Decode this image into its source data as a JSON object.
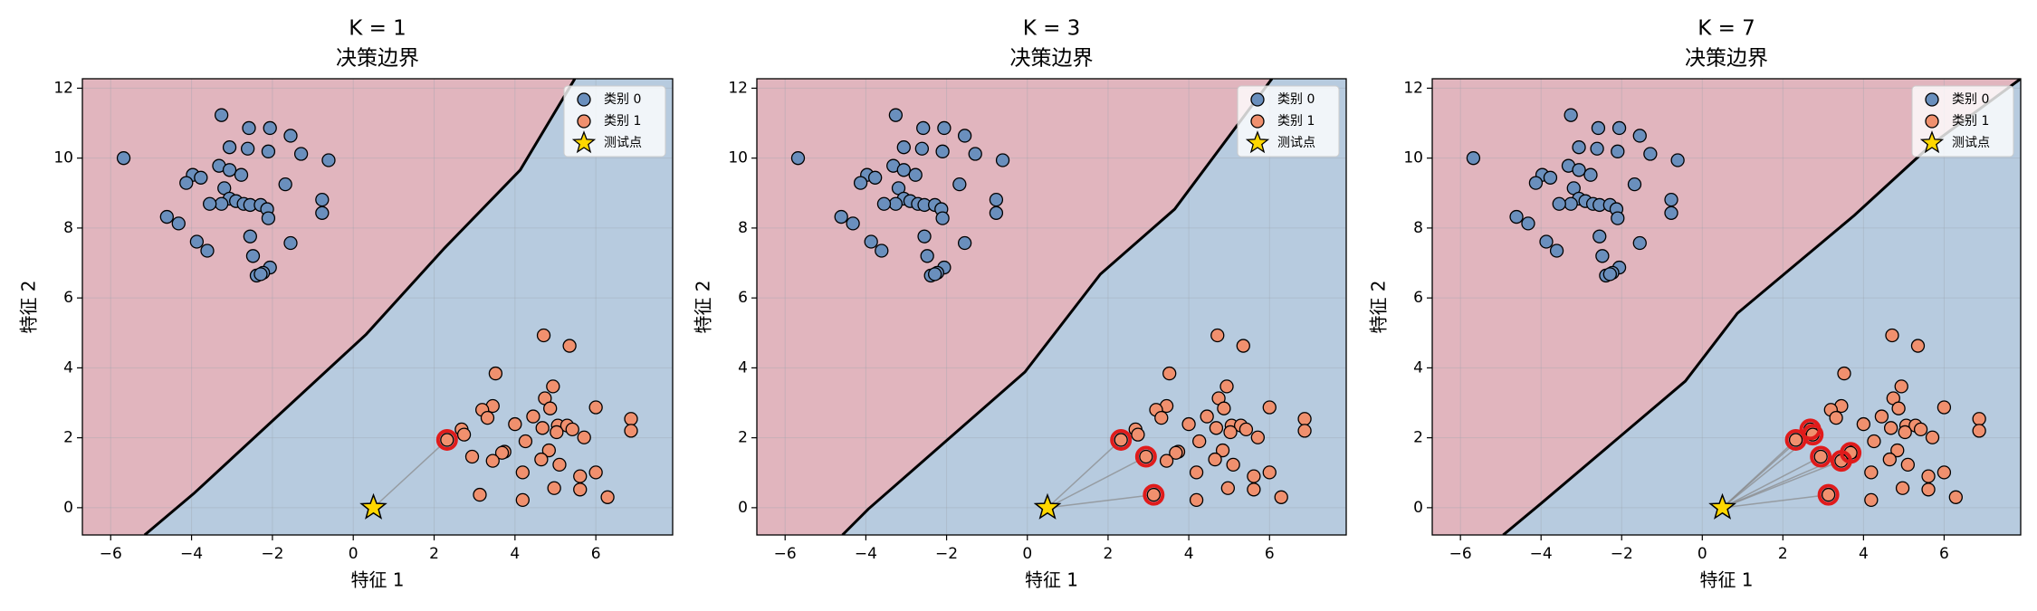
{
  "chart_data": [
    {
      "type": "scatter",
      "title": "K = 1",
      "subtitle": "决策边界",
      "xlabel": "特征 1",
      "ylabel": "特征 2",
      "xlim": [
        -6.7,
        7.9
      ],
      "ylim": [
        -0.78,
        12.27
      ],
      "xticks": [
        {
          "value": -6,
          "label": "−6"
        },
        {
          "value": -4,
          "label": "−4"
        },
        {
          "value": -2,
          "label": "−2"
        },
        0,
        2,
        4,
        6
      ],
      "yticks": [
        0,
        2,
        4,
        6,
        8,
        10,
        12
      ],
      "grid": true,
      "legend": "upper right",
      "region_colors": [
        "#e1b5be",
        "#b7cbdf"
      ],
      "boundary": {
        "x": [
          -5.16,
          -3.94,
          0.32,
          2.26,
          4.13,
          5.48
        ],
        "y": [
          -0.78,
          0.41,
          4.96,
          7.43,
          9.66,
          12.27
        ]
      },
      "series": [
        {
          "name": "类别 0",
          "color": "#6a8fbd",
          "marker": "circle",
          "x": [
            -5.68,
            -3.26,
            -2.58,
            -2.06,
            -1.55,
            -1.29,
            -0.61,
            -3.06,
            -2.61,
            -2.1,
            -3.32,
            -3.06,
            -2.77,
            -3.97,
            -3.77,
            -4.13,
            -3.19,
            -1.68,
            -3.06,
            -3.26,
            -3.55,
            -2.9,
            -2.71,
            -2.55,
            -2.29,
            -2.13,
            -0.77,
            -0.77,
            -4.61,
            -4.32,
            -2.1,
            -2.55,
            -3.87,
            -3.61,
            -1.55,
            -2.48,
            -2.06,
            -2.39,
            -2.23,
            -2.29
          ],
          "y": [
            10.0,
            11.23,
            10.86,
            10.86,
            10.64,
            10.12,
            9.94,
            10.31,
            10.27,
            10.19,
            9.78,
            9.66,
            9.52,
            9.52,
            9.44,
            9.29,
            9.14,
            9.25,
            8.84,
            8.69,
            8.69,
            8.77,
            8.69,
            8.66,
            8.66,
            8.54,
            8.81,
            8.43,
            8.32,
            8.13,
            8.28,
            7.76,
            7.61,
            7.35,
            7.57,
            7.2,
            6.87,
            6.64,
            6.72,
            6.68
          ]
        },
        {
          "name": "类别 1",
          "color": "#f0906e",
          "marker": "circle",
          "x": [
            2.32,
            4.71,
            5.35,
            3.52,
            4.94,
            3.45,
            3.19,
            3.32,
            2.68,
            2.74,
            4.74,
            4.87,
            6.0,
            4.0,
            4.45,
            4.68,
            5.06,
            5.29,
            5.03,
            5.42,
            5.71,
            6.87,
            6.87,
            4.26,
            3.74,
            3.68,
            3.45,
            4.84,
            4.65,
            4.19,
            5.1,
            5.61,
            6.0,
            5.61,
            3.13,
            4.19,
            4.97,
            6.29,
            2.94
          ],
          "y": [
            1.94,
            4.93,
            4.63,
            3.84,
            3.47,
            2.91,
            2.8,
            2.57,
            2.24,
            2.09,
            3.13,
            2.84,
            2.87,
            2.39,
            2.61,
            2.28,
            2.35,
            2.35,
            2.16,
            2.24,
            2.01,
            2.54,
            2.2,
            1.9,
            1.6,
            1.57,
            1.34,
            1.64,
            1.38,
            1.01,
            1.23,
            0.9,
            1.01,
            0.52,
            0.37,
            0.22,
            0.56,
            0.3,
            1.46
          ]
        },
        {
          "name": "测试点",
          "color": "#ffd700",
          "marker": "star",
          "x": [
            0.5
          ],
          "y": [
            0
          ]
        }
      ],
      "neighbors": [
        0
      ],
      "neighbor_color": "#e01b1b"
    },
    {
      "type": "scatter",
      "title": "K = 3",
      "subtitle": "决策边界",
      "xlabel": "特征 1",
      "ylabel": "特征 2",
      "xlim": [
        -6.7,
        7.9
      ],
      "ylim": [
        -0.78,
        12.27
      ],
      "xticks": [
        {
          "value": -6,
          "label": "−6"
        },
        {
          "value": -4,
          "label": "−4"
        },
        {
          "value": -2,
          "label": "−2"
        },
        0,
        2,
        4,
        6
      ],
      "yticks": [
        0,
        2,
        4,
        6,
        8,
        10,
        12
      ],
      "grid": true,
      "legend": "upper right",
      "region_colors": [
        "#e1b5be",
        "#b7cbdf"
      ],
      "boundary": {
        "x": [
          -4.58,
          -3.94,
          -0.06,
          1.81,
          3.65,
          6.06
        ],
        "y": [
          -0.78,
          -0.04,
          3.88,
          6.68,
          8.54,
          12.27
        ]
      },
      "series": [
        {
          "name": "类别 0",
          "color": "#6a8fbd",
          "marker": "circle",
          "x": [
            -5.68,
            -3.26,
            -2.58,
            -2.06,
            -1.55,
            -1.29,
            -0.61,
            -3.06,
            -2.61,
            -2.1,
            -3.32,
            -3.06,
            -2.77,
            -3.97,
            -3.77,
            -4.13,
            -3.19,
            -1.68,
            -3.06,
            -3.26,
            -3.55,
            -2.9,
            -2.71,
            -2.55,
            -2.29,
            -2.13,
            -0.77,
            -0.77,
            -4.61,
            -4.32,
            -2.1,
            -2.55,
            -3.87,
            -3.61,
            -1.55,
            -2.48,
            -2.06,
            -2.39,
            -2.23,
            -2.29
          ],
          "y": [
            10.0,
            11.23,
            10.86,
            10.86,
            10.64,
            10.12,
            9.94,
            10.31,
            10.27,
            10.19,
            9.78,
            9.66,
            9.52,
            9.52,
            9.44,
            9.29,
            9.14,
            9.25,
            8.84,
            8.69,
            8.69,
            8.77,
            8.69,
            8.66,
            8.66,
            8.54,
            8.81,
            8.43,
            8.32,
            8.13,
            8.28,
            7.76,
            7.61,
            7.35,
            7.57,
            7.2,
            6.87,
            6.64,
            6.72,
            6.68
          ]
        },
        {
          "name": "类别 1",
          "color": "#f0906e",
          "marker": "circle",
          "x": [
            2.32,
            4.71,
            5.35,
            3.52,
            4.94,
            3.45,
            3.19,
            3.32,
            2.68,
            2.74,
            4.74,
            4.87,
            6.0,
            4.0,
            4.45,
            4.68,
            5.06,
            5.29,
            5.03,
            5.42,
            5.71,
            6.87,
            6.87,
            4.26,
            3.74,
            3.68,
            3.45,
            4.84,
            4.65,
            4.19,
            5.1,
            5.61,
            6.0,
            5.61,
            3.13,
            4.19,
            4.97,
            6.29,
            2.94
          ],
          "y": [
            1.94,
            4.93,
            4.63,
            3.84,
            3.47,
            2.91,
            2.8,
            2.57,
            2.24,
            2.09,
            3.13,
            2.84,
            2.87,
            2.39,
            2.61,
            2.28,
            2.35,
            2.35,
            2.16,
            2.24,
            2.01,
            2.54,
            2.2,
            1.9,
            1.6,
            1.57,
            1.34,
            1.64,
            1.38,
            1.01,
            1.23,
            0.9,
            1.01,
            0.52,
            0.37,
            0.22,
            0.56,
            0.3,
            1.46
          ]
        },
        {
          "name": "测试点",
          "color": "#ffd700",
          "marker": "star",
          "x": [
            0.5
          ],
          "y": [
            0
          ]
        }
      ],
      "neighbors": [
        0,
        38,
        34
      ],
      "neighbor_color": "#e01b1b"
    },
    {
      "type": "scatter",
      "title": "K = 7",
      "subtitle": "决策边界",
      "xlabel": "特征 1",
      "ylabel": "特征 2",
      "xlim": [
        -6.7,
        7.9
      ],
      "ylim": [
        -0.78,
        12.27
      ],
      "xticks": [
        {
          "value": -6,
          "label": "−6"
        },
        {
          "value": -4,
          "label": "−4"
        },
        {
          "value": -2,
          "label": "−2"
        },
        0,
        2,
        4,
        6
      ],
      "yticks": [
        0,
        2,
        4,
        6,
        8,
        10,
        12
      ],
      "grid": true,
      "legend": "upper right",
      "region_colors": [
        "#e1b5be",
        "#b7cbdf"
      ],
      "boundary": {
        "x": [
          -4.94,
          -3.97,
          -0.42,
          0.87,
          3.77,
          5.71,
          7.9
        ],
        "y": [
          -0.78,
          0.15,
          3.62,
          5.56,
          8.36,
          10.41,
          12.27
        ]
      },
      "series": [
        {
          "name": "类别 0",
          "color": "#6a8fbd",
          "marker": "circle",
          "x": [
            -5.68,
            -3.26,
            -2.58,
            -2.06,
            -1.55,
            -1.29,
            -0.61,
            -3.06,
            -2.61,
            -2.1,
            -3.32,
            -3.06,
            -2.77,
            -3.97,
            -3.77,
            -4.13,
            -3.19,
            -1.68,
            -3.06,
            -3.26,
            -3.55,
            -2.9,
            -2.71,
            -2.55,
            -2.29,
            -2.13,
            -0.77,
            -0.77,
            -4.61,
            -4.32,
            -2.1,
            -2.55,
            -3.87,
            -3.61,
            -1.55,
            -2.48,
            -2.06,
            -2.39,
            -2.23,
            -2.29
          ],
          "y": [
            10.0,
            11.23,
            10.86,
            10.86,
            10.64,
            10.12,
            9.94,
            10.31,
            10.27,
            10.19,
            9.78,
            9.66,
            9.52,
            9.52,
            9.44,
            9.29,
            9.14,
            9.25,
            8.84,
            8.69,
            8.69,
            8.77,
            8.69,
            8.66,
            8.66,
            8.54,
            8.81,
            8.43,
            8.32,
            8.13,
            8.28,
            7.76,
            7.61,
            7.35,
            7.57,
            7.2,
            6.87,
            6.64,
            6.72,
            6.68
          ]
        },
        {
          "name": "类别 1",
          "color": "#f0906e",
          "marker": "circle",
          "x": [
            2.32,
            4.71,
            5.35,
            3.52,
            4.94,
            3.45,
            3.19,
            3.32,
            2.68,
            2.74,
            4.74,
            4.87,
            6.0,
            4.0,
            4.45,
            4.68,
            5.06,
            5.29,
            5.03,
            5.42,
            5.71,
            6.87,
            6.87,
            4.26,
            3.74,
            3.68,
            3.45,
            4.84,
            4.65,
            4.19,
            5.1,
            5.61,
            6.0,
            5.61,
            3.13,
            4.19,
            4.97,
            6.29,
            2.94
          ],
          "y": [
            1.94,
            4.93,
            4.63,
            3.84,
            3.47,
            2.91,
            2.8,
            2.57,
            2.24,
            2.09,
            3.13,
            2.84,
            2.87,
            2.39,
            2.61,
            2.28,
            2.35,
            2.35,
            2.16,
            2.24,
            2.01,
            2.54,
            2.2,
            1.9,
            1.6,
            1.57,
            1.34,
            1.64,
            1.38,
            1.01,
            1.23,
            0.9,
            1.01,
            0.52,
            0.37,
            0.22,
            0.56,
            0.3,
            1.46
          ]
        },
        {
          "name": "测试点",
          "color": "#ffd700",
          "marker": "star",
          "x": [
            0.5
          ],
          "y": [
            0
          ]
        }
      ],
      "neighbors": [
        0,
        34,
        38,
        9,
        8,
        26,
        25
      ],
      "neighbor_color": "#e01b1b"
    }
  ]
}
